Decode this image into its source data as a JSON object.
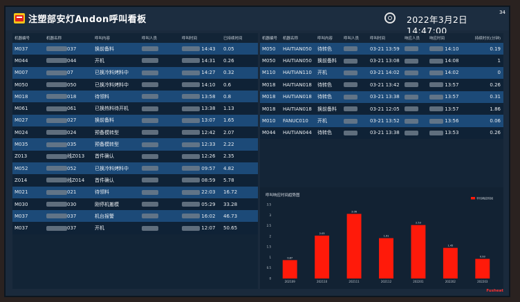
{
  "header": {
    "title": "注塑部安灯Andon呼叫看板",
    "datetime": "2022年3月2日 14:47:00",
    "seconds": "34",
    "logo_icon": "andon-logo-icon",
    "clock_icon": "clock-icon"
  },
  "left_table": {
    "columns": [
      "机器编号",
      "机器名称",
      "呼叫内容",
      "呼叫人员",
      "呼叫时间",
      "已持续时间"
    ],
    "rows": [
      {
        "id": "M037",
        "name_suffix": "037",
        "content": "换前备料",
        "time_suffix": "14:43",
        "duration": "0.05"
      },
      {
        "id": "M044",
        "name_suffix": "044",
        "content": "开机",
        "time_suffix": "14:31",
        "duration": "0.26"
      },
      {
        "id": "M007",
        "name_suffix": "07",
        "content": "已换冷料烤料中",
        "time_suffix": "14:27",
        "duration": "0.32"
      },
      {
        "id": "M050",
        "name_suffix": "050",
        "content": "已换冷料烤料中",
        "time_suffix": "14:10",
        "duration": "0.6"
      },
      {
        "id": "M018",
        "name_suffix": "018",
        "content": "待领料",
        "time_suffix": "13:58",
        "duration": "0.8"
      },
      {
        "id": "M061",
        "name_suffix": "061",
        "content": "已换热料待开机",
        "time_suffix": "13:38",
        "duration": "1.13"
      },
      {
        "id": "M027",
        "name_suffix": "027",
        "content": "换前备料",
        "time_suffix": "13:07",
        "duration": "1.65"
      },
      {
        "id": "M024",
        "name_suffix": "024",
        "content": "预备模转型",
        "time_suffix": "12:42",
        "duration": "2.07"
      },
      {
        "id": "M035",
        "name_suffix": "035",
        "content": "预备模转型",
        "time_suffix": "12:33",
        "duration": "2.22"
      },
      {
        "id": "Z013",
        "name_suffix": "线Z013",
        "content": "首件确认",
        "time_suffix": "12:26",
        "duration": "2.35"
      },
      {
        "id": "M052",
        "name_suffix": "052",
        "content": "已换冷料烤料中",
        "time_suffix": "09:57",
        "duration": "4.82"
      },
      {
        "id": "Z014",
        "name_suffix": "线Z014",
        "content": "首件确认",
        "time_suffix": "08:59",
        "duration": "5.78"
      },
      {
        "id": "M021",
        "name_suffix": "021",
        "content": "待领料",
        "time_suffix": "22:03",
        "duration": "16.72"
      },
      {
        "id": "M030",
        "name_suffix": "030",
        "content": "刚停机搬模",
        "time_suffix": "05:29",
        "duration": "33.28"
      },
      {
        "id": "M037",
        "name_suffix": "037",
        "content": "机台报警",
        "time_suffix": "16:02",
        "duration": "46.73"
      },
      {
        "id": "M037",
        "name_suffix": "037",
        "content": "开机",
        "time_suffix": "12:07",
        "duration": "50.65"
      }
    ]
  },
  "right_table": {
    "columns": [
      "机器编号",
      "机器名称",
      "呼叫内容",
      "呼叫人员",
      "呼叫时间",
      "响应人员",
      "响应时间",
      "持续时长(分钟)"
    ],
    "rows": [
      {
        "id": "M050",
        "name": "HAITIAN050",
        "content": "待转色",
        "call_time": "03-21 13:59",
        "resp_time": "14:10",
        "duration": "0.19"
      },
      {
        "id": "M050",
        "name": "HAITIAN050",
        "content": "换前备料",
        "call_time": "03-21 13:08",
        "resp_time": "14:08",
        "duration": "1"
      },
      {
        "id": "M110",
        "name": "HAITIAN110",
        "content": "开机",
        "call_time": "03-21 14:02",
        "resp_time": "14:02",
        "duration": "0"
      },
      {
        "id": "M018",
        "name": "HAITIAN018",
        "content": "待转色",
        "call_time": "03-21 13:42",
        "resp_time": "13:57",
        "duration": "0.26"
      },
      {
        "id": "M018",
        "name": "HAITIAN018",
        "content": "待转色",
        "call_time": "03-21 13:38",
        "resp_time": "13:57",
        "duration": "0.31"
      },
      {
        "id": "M018",
        "name": "HAITIAN018",
        "content": "换前备料",
        "call_time": "03-21 12:05",
        "resp_time": "13:57",
        "duration": "1.86"
      },
      {
        "id": "M010",
        "name": "FANUC010",
        "content": "开机",
        "call_time": "03-21 13:52",
        "resp_time": "13:56",
        "duration": "0.06"
      },
      {
        "id": "M044",
        "name": "HAITIAN044",
        "content": "待转色",
        "call_time": "03-21 13:38",
        "resp_time": "13:53",
        "duration": "0.26"
      }
    ]
  },
  "chart_data": {
    "type": "bar",
    "title": "呼叫响应时间趋势图",
    "legend": "平均响应时间",
    "legend_position": "top-right",
    "categories": [
      "202109",
      "202110",
      "202111",
      "202112",
      "202201",
      "202202",
      "202203"
    ],
    "values": [
      0.87,
      2.03,
      3.06,
      1.91,
      2.53,
      1.45,
      0.93
    ],
    "ylim": [
      0,
      3.5
    ],
    "yticks": [
      "0",
      "0.5",
      "1",
      "1.5",
      "2",
      "2.5",
      "3",
      "3.5"
    ],
    "bar_color": "#ff1a0a",
    "grid": false
  },
  "footer": {
    "brand": "Fusheat"
  }
}
